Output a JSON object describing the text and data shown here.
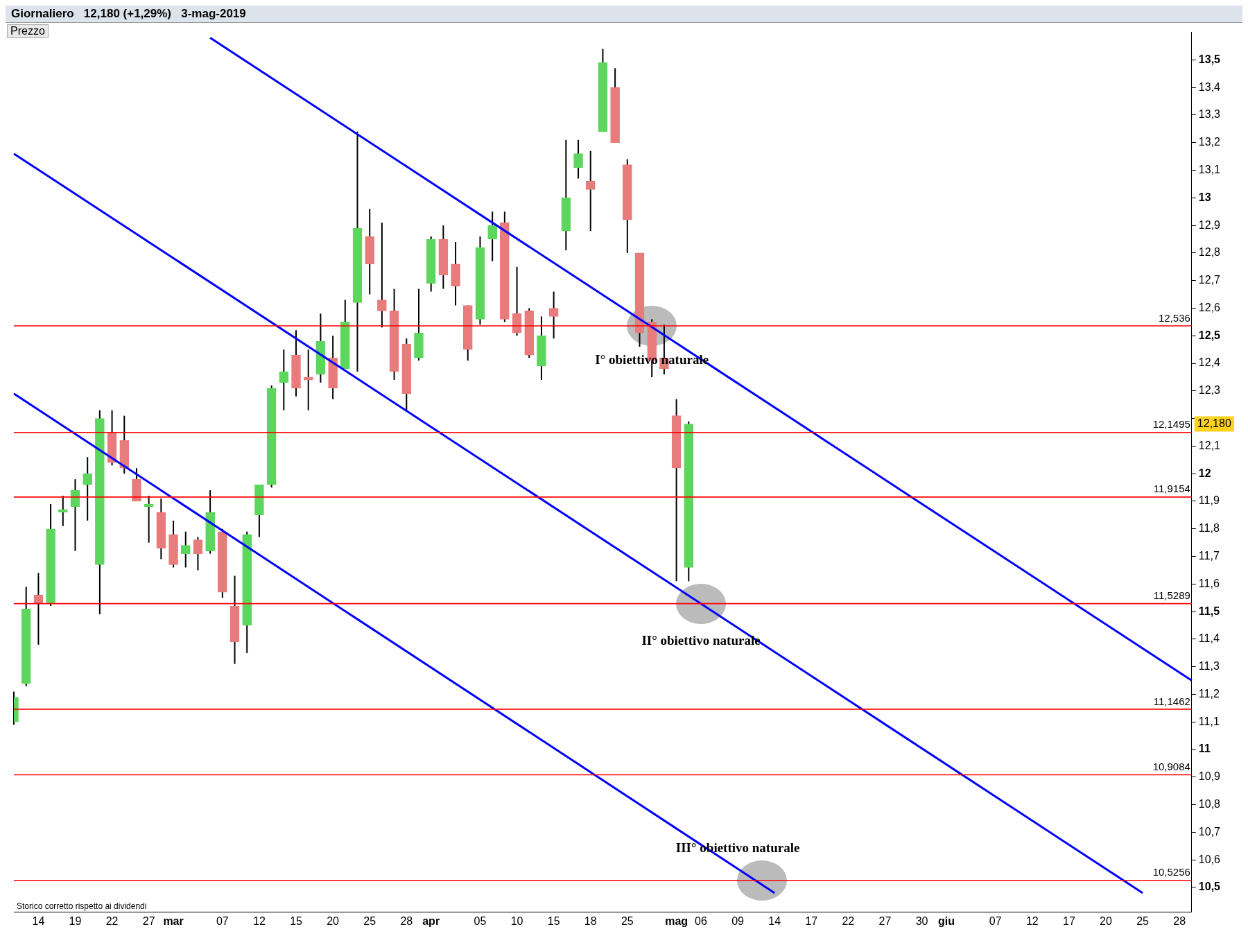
{
  "chart_data": {
    "type": "candlestick",
    "title": "Giornaliero   12,180 (+1,29%)   3-mag-2019",
    "subtitle": "Prezzo",
    "categories": [
      null,
      null,
      "14",
      null,
      null,
      "19",
      null,
      null,
      "22",
      null,
      null,
      "27",
      null,
      "mar",
      null,
      null,
      null,
      "07",
      null,
      null,
      "12",
      null,
      null,
      "15",
      null,
      null,
      "20",
      null,
      null,
      "25",
      null,
      null,
      "28",
      null,
      "apr",
      null,
      null,
      null,
      "05",
      null,
      null,
      "10",
      null,
      null,
      "15",
      null,
      null,
      "18",
      null,
      null,
      "25",
      null,
      null,
      null,
      "mag",
      null,
      "06",
      null,
      null,
      "09",
      null,
      null,
      "14",
      null,
      null,
      "17",
      null,
      null,
      "22",
      null,
      null,
      "27",
      null,
      null,
      "30",
      null,
      "giu",
      null,
      null,
      null,
      "07",
      null,
      null,
      "12",
      null,
      null,
      "17",
      null,
      null,
      "20",
      null,
      null,
      "25",
      null,
      null,
      "28",
      null
    ],
    "ohlc": [
      [
        11.1,
        11.21,
        11.09,
        11.19
      ],
      [
        11.24,
        11.59,
        11.23,
        11.51
      ],
      [
        11.56,
        11.64,
        11.38,
        11.53
      ],
      [
        11.53,
        11.89,
        11.52,
        11.8
      ],
      [
        11.86,
        11.92,
        11.81,
        11.87
      ],
      [
        11.88,
        11.98,
        11.72,
        11.94
      ],
      [
        11.96,
        12.06,
        11.83,
        12.0
      ],
      [
        11.67,
        12.23,
        11.49,
        12.2
      ],
      [
        12.15,
        12.23,
        12.03,
        12.04
      ],
      [
        12.12,
        12.21,
        12.0,
        12.02
      ],
      [
        11.98,
        12.02,
        11.9,
        11.9
      ],
      [
        11.88,
        11.92,
        11.75,
        11.89
      ],
      [
        11.86,
        11.91,
        11.69,
        11.73
      ],
      [
        11.78,
        11.83,
        11.66,
        11.67
      ],
      [
        11.71,
        11.79,
        11.66,
        11.74
      ],
      [
        11.76,
        11.77,
        11.65,
        11.71
      ],
      [
        11.72,
        11.94,
        11.71,
        11.86
      ],
      [
        11.79,
        11.8,
        11.55,
        11.57
      ],
      [
        11.52,
        11.63,
        11.31,
        11.39
      ],
      [
        11.45,
        11.79,
        11.35,
        11.78
      ],
      [
        11.85,
        11.96,
        11.77,
        11.96
      ],
      [
        11.96,
        12.32,
        11.95,
        12.31
      ],
      [
        12.33,
        12.45,
        12.23,
        12.37
      ],
      [
        12.43,
        12.52,
        12.28,
        12.31
      ],
      [
        12.35,
        12.45,
        12.23,
        12.34
      ],
      [
        12.36,
        12.58,
        12.33,
        12.48
      ],
      [
        12.42,
        12.5,
        12.27,
        12.31
      ],
      [
        12.38,
        12.63,
        12.38,
        12.55
      ],
      [
        12.62,
        13.24,
        12.37,
        12.89
      ],
      [
        12.86,
        12.96,
        12.65,
        12.76
      ],
      [
        12.63,
        12.91,
        12.53,
        12.59
      ],
      [
        12.59,
        12.67,
        12.34,
        12.37
      ],
      [
        12.47,
        12.49,
        12.23,
        12.29
      ],
      [
        12.42,
        12.67,
        12.41,
        12.51
      ],
      [
        12.69,
        12.86,
        12.66,
        12.85
      ],
      [
        12.85,
        12.9,
        12.67,
        12.72
      ],
      [
        12.76,
        12.84,
        12.61,
        12.68
      ],
      [
        12.61,
        12.61,
        12.41,
        12.45
      ],
      [
        12.56,
        12.86,
        12.54,
        12.82
      ],
      [
        12.85,
        12.95,
        12.77,
        12.9
      ],
      [
        12.91,
        12.95,
        12.55,
        12.56
      ],
      [
        12.58,
        12.75,
        12.5,
        12.51
      ],
      [
        12.59,
        12.6,
        12.42,
        12.43
      ],
      [
        12.39,
        12.57,
        12.34,
        12.5
      ],
      [
        12.6,
        12.66,
        12.49,
        12.57
      ],
      [
        12.88,
        13.21,
        12.81,
        13.0
      ],
      [
        13.11,
        13.21,
        13.07,
        13.16
      ],
      [
        13.06,
        13.17,
        12.88,
        13.03
      ],
      [
        13.24,
        13.54,
        13.24,
        13.49
      ],
      [
        13.4,
        13.47,
        13.2,
        13.2
      ],
      [
        13.12,
        13.14,
        12.8,
        12.92
      ],
      [
        12.8,
        12.8,
        12.46,
        12.51
      ],
      [
        12.55,
        12.56,
        12.35,
        12.41
      ],
      [
        12.42,
        12.54,
        12.36,
        12.38
      ],
      [
        12.21,
        12.27,
        11.61,
        12.02
      ],
      [
        11.66,
        12.19,
        11.61,
        12.18
      ],
      null,
      null,
      null,
      null,
      null,
      null,
      null,
      null,
      null,
      null,
      null,
      null,
      null,
      null,
      null,
      null,
      null,
      null,
      null,
      null,
      null,
      null,
      null,
      null,
      null,
      null,
      null,
      null,
      null,
      null,
      null,
      null,
      null,
      null,
      null,
      null,
      null,
      null,
      null,
      null,
      null
    ],
    "colors": [
      "#5cd65c",
      "#5cd65c",
      "#e87b7b",
      "#5cd65c",
      "#5cd65c",
      "#5cd65c",
      "#5cd65c",
      "#5cd65c",
      "#e87b7b",
      "#e87b7b",
      "#e87b7b",
      "#5cd65c",
      "#e87b7b",
      "#e87b7b",
      "#5cd65c",
      "#e87b7b",
      "#5cd65c",
      "#e87b7b",
      "#e87b7b",
      "#5cd65c",
      "#5cd65c",
      "#5cd65c",
      "#5cd65c",
      "#e87b7b",
      "#e87b7b",
      "#5cd65c",
      "#e87b7b",
      "#5cd65c",
      "#5cd65c",
      "#e87b7b",
      "#e87b7b",
      "#e87b7b",
      "#e87b7b",
      "#5cd65c",
      "#5cd65c",
      "#e87b7b",
      "#e87b7b",
      "#e87b7b",
      "#5cd65c",
      "#5cd65c",
      "#e87b7b",
      "#e87b7b",
      "#e87b7b",
      "#5cd65c",
      "#e87b7b",
      "#5cd65c",
      "#5cd65c",
      "#e87b7b",
      "#5cd65c",
      "#e87b7b",
      "#e87b7b",
      "#e87b7b",
      "#e87b7b",
      "#e87b7b",
      "#e87b7b",
      "#5cd65c",
      null,
      null,
      null,
      null,
      null,
      null,
      null,
      null,
      null,
      null,
      null,
      null,
      null,
      null,
      null,
      null,
      null,
      null,
      null,
      null,
      null,
      null,
      null,
      null,
      null,
      null,
      null,
      null,
      null,
      null,
      null,
      null,
      null,
      null,
      null,
      null,
      null,
      null,
      null,
      null,
      null
    ],
    "series": [
      {
        "type": "line",
        "color": "#0000ff",
        "values": [
          null,
          null,
          null,
          null,
          null,
          null,
          null,
          null,
          null,
          null,
          null,
          null,
          null,
          null,
          null,
          null,
          13.58,
          null,
          null,
          null,
          null,
          null,
          null,
          null,
          null,
          null,
          null,
          null,
          null,
          null,
          null,
          null,
          null,
          null,
          null,
          null,
          null,
          null,
          null,
          null,
          null,
          null,
          null,
          null,
          null,
          null,
          null,
          null,
          null,
          null,
          null,
          null,
          null,
          null,
          null,
          null,
          null,
          null,
          null,
          null,
          null,
          null,
          null,
          null,
          null,
          null,
          null,
          null,
          null,
          null,
          null,
          null,
          null,
          null,
          null,
          null,
          null,
          null,
          null,
          null,
          null,
          null,
          null,
          null,
          null,
          null,
          null,
          null,
          null,
          null,
          null,
          null,
          null,
          null,
          null,
          null,
          11.25
        ]
      },
      {
        "type": "line",
        "color": "#0000ff",
        "values": [
          13.16,
          null,
          null,
          null,
          null,
          null,
          null,
          null,
          null,
          null,
          null,
          null,
          null,
          null,
          null,
          null,
          null,
          null,
          null,
          null,
          null,
          null,
          null,
          null,
          null,
          null,
          null,
          null,
          null,
          null,
          null,
          null,
          null,
          null,
          null,
          null,
          null,
          null,
          null,
          null,
          null,
          null,
          null,
          null,
          null,
          null,
          null,
          null,
          null,
          null,
          null,
          null,
          null,
          null,
          null,
          null,
          null,
          null,
          null,
          null,
          null,
          null,
          null,
          null,
          null,
          null,
          null,
          null,
          null,
          null,
          null,
          null,
          null,
          null,
          null,
          null,
          null,
          null,
          null,
          null,
          null,
          null,
          null,
          null,
          null,
          null,
          null,
          null,
          null,
          null,
          null,
          null,
          10.48,
          null,
          null,
          null,
          null
        ]
      },
      {
        "type": "line",
        "color": "#0000ff",
        "values": [
          12.29,
          null,
          null,
          null,
          null,
          null,
          null,
          null,
          null,
          null,
          null,
          null,
          null,
          null,
          null,
          null,
          null,
          null,
          null,
          null,
          null,
          null,
          null,
          null,
          null,
          null,
          null,
          null,
          null,
          null,
          null,
          null,
          null,
          null,
          null,
          null,
          null,
          null,
          null,
          null,
          null,
          null,
          null,
          null,
          null,
          null,
          null,
          null,
          null,
          null,
          null,
          null,
          null,
          null,
          null,
          null,
          null,
          null,
          null,
          null,
          null,
          null,
          10.48,
          null,
          null,
          null,
          null,
          null,
          null,
          null,
          null,
          null,
          null,
          null,
          null,
          null,
          null,
          null,
          null,
          null,
          null,
          null,
          null,
          null,
          null,
          null,
          null,
          null,
          null,
          null,
          null,
          null,
          null,
          null,
          null,
          null,
          null
        ]
      }
    ],
    "ylim": [
      10.41,
      13.6
    ],
    "yticks": [
      {
        "value": 10.5,
        "label": "10,5"
      },
      {
        "value": 10.6,
        "label": "10,6"
      },
      {
        "value": 10.7,
        "label": "10,7"
      },
      {
        "value": 10.8,
        "label": "10,8"
      },
      {
        "value": 10.9,
        "label": "10,9"
      },
      11,
      {
        "value": 11.1,
        "label": "11,1"
      },
      {
        "value": 11.2,
        "label": "11,2"
      },
      {
        "value": 11.3,
        "label": "11,3"
      },
      {
        "value": 11.4,
        "label": "11,4"
      },
      {
        "value": 11.5,
        "label": "11,5"
      },
      {
        "value": 11.6,
        "label": "11,6"
      },
      {
        "value": 11.7,
        "label": "11,7"
      },
      {
        "value": 11.8,
        "label": "11,8"
      },
      {
        "value": 11.9,
        "label": "11,9"
      },
      12,
      {
        "value": 12.1,
        "label": "12,1"
      },
      {
        "value": 12.2,
        "label": null
      },
      {
        "value": 12.3,
        "label": "12,3"
      },
      {
        "value": 12.4,
        "label": "12,4"
      },
      {
        "value": 12.5,
        "label": "12,5"
      },
      {
        "value": 12.6,
        "label": "12,6"
      },
      {
        "value": 12.7,
        "label": "12,7"
      },
      {
        "value": 12.8,
        "label": "12,8"
      },
      {
        "value": 12.9,
        "label": "12,9"
      },
      13,
      {
        "value": 13.1,
        "label": "13,1"
      },
      {
        "value": 13.2,
        "label": "13,2"
      },
      {
        "value": 13.3,
        "label": "13,3"
      },
      {
        "value": 13.4,
        "label": "13,4"
      },
      {
        "value": 13.5,
        "label": "13,5"
      }
    ],
    "ref_lines": [
      {
        "axis": "y",
        "value": 12.536,
        "label": "12,536",
        "color": "#ff0000"
      },
      {
        "axis": "y",
        "value": 12.1495,
        "label": "12,1495",
        "color": "#ff0000"
      },
      {
        "axis": "y",
        "value": 11.9154,
        "label": "11,9154",
        "color": "#ff0000"
      },
      {
        "axis": "y",
        "value": 11.5289,
        "label": "11,5289",
        "color": "#ff0000"
      },
      {
        "axis": "y",
        "value": 11.1462,
        "label": "11,1462",
        "color": "#ff0000"
      },
      {
        "axis": "y",
        "value": 10.9084,
        "label": "10,9084",
        "color": "#ff0000"
      },
      {
        "axis": "y",
        "value": 10.5256,
        "label": "10,5256",
        "color": "#ff0000"
      }
    ],
    "annotations": [
      "Storico corretto rispetto ai dividendi",
      {
        "text": "I° obiettivo naturale",
        "y": 12.536
      },
      {
        "text": "II° obiettivo naturale",
        "y": 11.5289
      },
      {
        "text": "III° obiettivo naturale",
        "y": 10.5256
      },
      "12,180"
    ]
  }
}
